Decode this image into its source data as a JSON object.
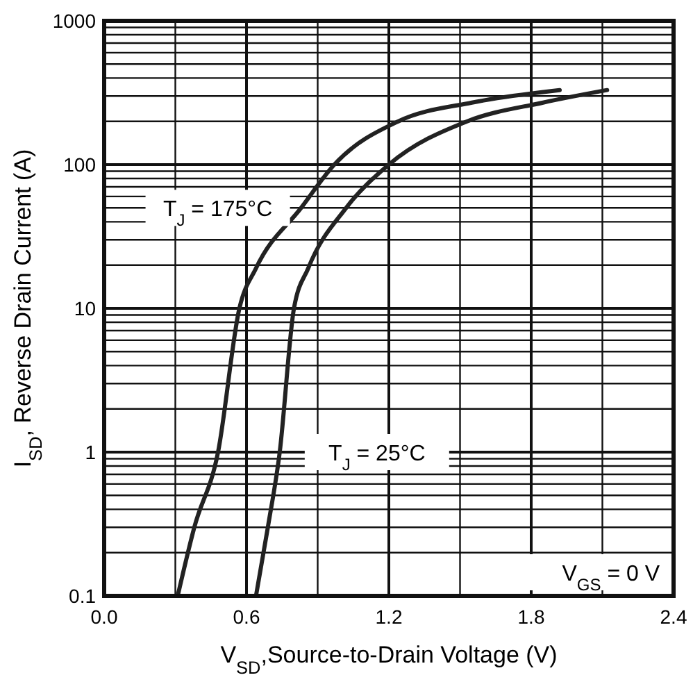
{
  "chart_data": {
    "type": "line",
    "xlabel": "V$_{SD}$,Source-to-Drain Voltage (V)",
    "ylabel": "I$_{SD}$, Reverse Drain Current (A)",
    "log": "y",
    "grid": true,
    "line_style": "solid",
    "xlim": [
      0,
      2.4
    ],
    "ylim": [
      0.1,
      1000
    ],
    "xticks": [
      {
        "value": 0,
        "label": "0.0"
      },
      {
        "value": 0.3,
        "label": null
      },
      0.6,
      {
        "value": 0.9,
        "label": null
      },
      1.2,
      {
        "value": 1.5,
        "label": null
      },
      1.8,
      {
        "value": 2.1,
        "label": null
      },
      2.4
    ],
    "yticks": [
      0.1,
      {
        "value": 0.2,
        "label": null
      },
      {
        "value": 0.3,
        "label": null
      },
      {
        "value": 0.4,
        "label": null
      },
      {
        "value": 0.5,
        "label": null
      },
      {
        "value": 0.6,
        "label": null
      },
      {
        "value": 0.7,
        "label": null
      },
      {
        "value": 0.8,
        "label": null
      },
      {
        "value": 0.9,
        "label": null
      },
      1,
      {
        "value": 2,
        "label": null
      },
      {
        "value": 3,
        "label": null
      },
      {
        "value": 4,
        "label": null
      },
      {
        "value": 5,
        "label": null
      },
      {
        "value": 6,
        "label": null
      },
      {
        "value": 7,
        "label": null
      },
      {
        "value": 8,
        "label": null
      },
      {
        "value": 9,
        "label": null
      },
      10,
      {
        "value": 20,
        "label": null
      },
      {
        "value": 30,
        "label": null
      },
      {
        "value": 40,
        "label": null
      },
      {
        "value": 50,
        "label": null
      },
      {
        "value": 60,
        "label": null
      },
      {
        "value": 70,
        "label": null
      },
      {
        "value": 80,
        "label": null
      },
      {
        "value": 90,
        "label": null
      },
      100,
      {
        "value": 200,
        "label": null
      },
      {
        "value": 300,
        "label": null
      },
      {
        "value": 400,
        "label": null
      },
      {
        "value": 500,
        "label": null
      },
      {
        "value": 600,
        "label": null
      },
      {
        "value": 700,
        "label": null
      },
      {
        "value": 800,
        "label": null
      },
      {
        "value": 900,
        "label": null
      },
      1000
    ],
    "series": [
      {
        "name": "T$_{J}$ = 175°C",
        "color": "#222222",
        "x": [
          0.31,
          0.38,
          0.48,
          0.57,
          0.64,
          0.83,
          0.97,
          1.24,
          1.55,
          1.92
        ],
        "values": [
          0.1,
          0.3,
          1,
          10,
          19,
          50,
          100,
          200,
          270,
          330
        ]
      },
      {
        "name": "T$_{J}$ = 25°C",
        "color": "#222222",
        "x": [
          0.64,
          0.69,
          0.74,
          0.8,
          0.86,
          1.02,
          1.2,
          1.53,
          1.85,
          2.12
        ],
        "values": [
          0.1,
          0.3,
          1,
          10,
          19,
          50,
          100,
          200,
          270,
          330
        ]
      }
    ],
    "annotations": [
      "V$_{GS}$ = 0 V"
    ]
  }
}
